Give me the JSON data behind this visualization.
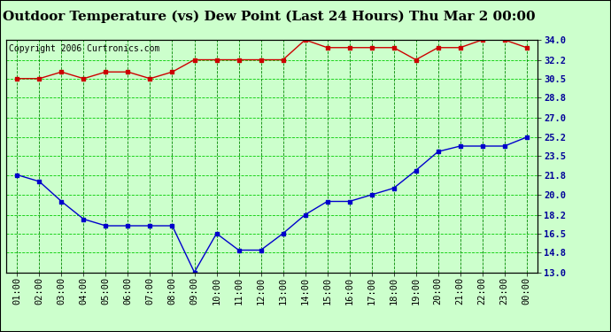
{
  "title": "Outdoor Temperature (vs) Dew Point (Last 24 Hours) Thu Mar 2 00:00",
  "copyright": "Copyright 2006 Curtronics.com",
  "x_labels": [
    "01:00",
    "02:00",
    "03:00",
    "04:00",
    "05:00",
    "06:00",
    "07:00",
    "08:00",
    "09:00",
    "10:00",
    "11:00",
    "12:00",
    "13:00",
    "14:00",
    "15:00",
    "16:00",
    "17:00",
    "18:00",
    "19:00",
    "20:00",
    "21:00",
    "22:00",
    "23:00",
    "00:00"
  ],
  "temp_values": [
    30.5,
    30.5,
    31.1,
    30.5,
    31.1,
    31.1,
    30.5,
    31.1,
    32.2,
    32.2,
    32.2,
    32.2,
    32.2,
    34.0,
    33.3,
    33.3,
    33.3,
    33.3,
    32.2,
    33.3,
    33.3,
    34.0,
    34.0,
    33.3
  ],
  "dew_values": [
    21.8,
    21.2,
    19.4,
    17.8,
    17.2,
    17.2,
    17.2,
    17.2,
    13.0,
    16.5,
    15.0,
    15.0,
    16.5,
    18.2,
    19.4,
    19.4,
    20.0,
    20.6,
    22.2,
    23.9,
    24.4,
    24.4,
    24.4,
    25.2
  ],
  "temp_color": "#cc0000",
  "dew_color": "#0000cc",
  "bg_color": "#ccffcc",
  "grid_color": "#00cc00",
  "grid_dash_color": "#008800",
  "ylim": [
    13.0,
    34.0
  ],
  "yticks": [
    13.0,
    14.8,
    16.5,
    18.2,
    20.0,
    21.8,
    23.5,
    25.2,
    27.0,
    28.8,
    30.5,
    32.2,
    34.0
  ],
  "title_fontsize": 11,
  "copyright_fontsize": 7,
  "tick_fontsize": 7.5,
  "marker_size": 3,
  "line_width": 1.0
}
